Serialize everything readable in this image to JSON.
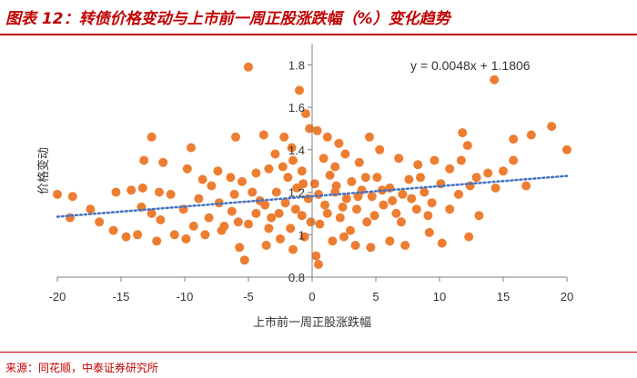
{
  "header": {
    "title": "图表 12：转债价格变动与上市前一周正股涨跌幅（%）变化趋势"
  },
  "footer": {
    "source": "来源：同花顺，中泰证券研究所"
  },
  "colors": {
    "accent": "#c00000",
    "points": "#ed7d31",
    "trend": "#4472c4",
    "axis": "#808080"
  },
  "chart_data": {
    "type": "scatter",
    "xlabel": "上市前一周正股涨跌幅",
    "ylabel": "价格变动",
    "xlim": [
      -20,
      20
    ],
    "ylim": [
      0.8,
      1.9
    ],
    "xticks": [
      -20,
      -15,
      -10,
      -5,
      0,
      5,
      10,
      15,
      20
    ],
    "yticks": [
      0.8,
      1,
      1.2,
      1.4,
      1.6,
      1.8
    ],
    "grid": false,
    "annotation": "y = 0.0048x + 1.1806",
    "trendline": {
      "slope": 0.0048,
      "intercept": 1.1806
    },
    "points": [
      [
        -5,
        1.79
      ],
      [
        14.3,
        1.73
      ],
      [
        -1,
        1.68
      ],
      [
        -0.5,
        1.57
      ],
      [
        -0.2,
        1.5
      ],
      [
        0.4,
        1.49
      ],
      [
        -12.6,
        1.46
      ],
      [
        -6,
        1.46
      ],
      [
        -3.8,
        1.47
      ],
      [
        -2.2,
        1.46
      ],
      [
        -1.6,
        1.41
      ],
      [
        1.2,
        1.46
      ],
      [
        4.5,
        1.46
      ],
      [
        11.8,
        1.48
      ],
      [
        15.8,
        1.45
      ],
      [
        17.2,
        1.47
      ],
      [
        18.8,
        1.51
      ],
      [
        20,
        1.4
      ],
      [
        -9.5,
        1.41
      ],
      [
        -13.2,
        1.35
      ],
      [
        -11.7,
        1.34
      ],
      [
        -20,
        1.19
      ],
      [
        -18.8,
        1.18
      ],
      [
        -17.4,
        1.12
      ],
      [
        -15.4,
        1.2
      ],
      [
        -14.2,
        1.21
      ],
      [
        -13.3,
        1.22
      ],
      [
        -12,
        1.2
      ],
      [
        -11.1,
        1.19
      ],
      [
        -9.8,
        1.31
      ],
      [
        -8.6,
        1.26
      ],
      [
        -7.4,
        1.3
      ],
      [
        -6.4,
        1.27
      ],
      [
        -5.5,
        1.25
      ],
      [
        -4.4,
        1.29
      ],
      [
        -3.4,
        1.31
      ],
      [
        -2.3,
        1.32
      ],
      [
        -1.5,
        1.35
      ],
      [
        -0.8,
        1.3
      ],
      [
        0.9,
        1.36
      ],
      [
        1.8,
        1.32
      ],
      [
        2.6,
        1.38
      ],
      [
        3.7,
        1.34
      ],
      [
        5.3,
        1.4
      ],
      [
        6.8,
        1.36
      ],
      [
        8.3,
        1.33
      ],
      [
        9.6,
        1.35
      ],
      [
        10.8,
        1.31
      ],
      [
        11.7,
        1.35
      ],
      [
        12.2,
        1.42
      ],
      [
        12.9,
        1.27
      ],
      [
        13.8,
        1.29
      ],
      [
        15,
        1.3
      ],
      [
        15.8,
        1.35
      ],
      [
        16.8,
        1.23
      ],
      [
        -19,
        1.08
      ],
      [
        -16.7,
        1.06
      ],
      [
        -15.6,
        1.02
      ],
      [
        -13.4,
        1.13
      ],
      [
        -12.6,
        1.1
      ],
      [
        -10.1,
        1.12
      ],
      [
        -9.3,
        1.04
      ],
      [
        -8.1,
        1.08
      ],
      [
        -7.3,
        1.15
      ],
      [
        -6.3,
        1.11
      ],
      [
        -5.8,
        1.06
      ],
      [
        -14.6,
        0.99
      ],
      [
        -13.7,
        1.0
      ],
      [
        -12.2,
        0.97
      ],
      [
        -10.8,
        1.0
      ],
      [
        -5.7,
        0.94
      ],
      [
        -5.3,
        0.88
      ],
      [
        -3.6,
        0.95
      ],
      [
        -2.5,
        0.98
      ],
      [
        -1.5,
        0.93
      ],
      [
        -0.6,
        0.99
      ],
      [
        0.3,
        0.9
      ],
      [
        0.5,
        0.86
      ],
      [
        1.6,
        0.97
      ],
      [
        2.5,
        0.99
      ],
      [
        3.4,
        0.95
      ],
      [
        4.6,
        0.94
      ],
      [
        6.1,
        0.97
      ],
      [
        7.3,
        0.95
      ],
      [
        9.2,
        1.01
      ],
      [
        10.2,
        0.96
      ],
      [
        12.3,
        0.99
      ],
      [
        -5,
        1.05
      ],
      [
        -4.4,
        1.1
      ],
      [
        -3.7,
        1.14
      ],
      [
        -3.2,
        1.08
      ],
      [
        -2.8,
        1.2
      ],
      [
        -2.1,
        1.15
      ],
      [
        -1.7,
        1.03
      ],
      [
        -1.2,
        1.22
      ],
      [
        -0.8,
        1.09
      ],
      [
        -0.3,
        1.17
      ],
      [
        0.2,
        1.24
      ],
      [
        0.6,
        1.05
      ],
      [
        1,
        1.14
      ],
      [
        1.4,
        1.28
      ],
      [
        1.8,
        1.2
      ],
      [
        2.2,
        1.08
      ],
      [
        2.7,
        1.17
      ],
      [
        3.1,
        1.25
      ],
      [
        3.5,
        1.12
      ],
      [
        3.9,
        1.21
      ],
      [
        4.3,
        1.06
      ],
      [
        4.7,
        1.18
      ],
      [
        5.1,
        1.27
      ],
      [
        5.6,
        1.14
      ],
      [
        6.1,
        1.22
      ],
      [
        6.6,
        1.1
      ],
      [
        7.1,
        1.19
      ],
      [
        7.6,
        1.26
      ],
      [
        8.2,
        1.12
      ],
      [
        8.8,
        1.2
      ],
      [
        9.4,
        1.15
      ],
      [
        10.1,
        1.24
      ],
      [
        10.8,
        1.12
      ],
      [
        11.5,
        1.19
      ],
      [
        12.4,
        1.23
      ],
      [
        -4.7,
        1.2
      ],
      [
        -4.1,
        1.16
      ],
      [
        -3.4,
        1.03
      ],
      [
        -2.6,
        1.1
      ],
      [
        -1.9,
        1.27
      ],
      [
        -1.3,
        1.12
      ],
      [
        -0.7,
        1.24
      ],
      [
        -0.1,
        1.06
      ],
      [
        0.5,
        1.19
      ],
      [
        1.2,
        1.1
      ],
      [
        1.9,
        1.23
      ],
      [
        2.4,
        1.13
      ],
      [
        3,
        1.02
      ],
      [
        3.6,
        1.18
      ],
      [
        4.2,
        1.27
      ],
      [
        4.9,
        1.09
      ],
      [
        5.5,
        1.21
      ],
      [
        6.3,
        1.16
      ],
      [
        7,
        1.06
      ],
      [
        7.8,
        1.17
      ],
      [
        8.5,
        1.27
      ],
      [
        9.1,
        1.09
      ],
      [
        -8.9,
        1.17
      ],
      [
        -7.9,
        1.23
      ],
      [
        -6.9,
        1.04
      ],
      [
        -6.1,
        1.19
      ],
      [
        -11.9,
        1.07
      ],
      [
        -9.9,
        0.98
      ],
      [
        -8.4,
        1.0
      ],
      [
        -7.1,
        1.02
      ],
      [
        13.1,
        1.09
      ],
      [
        14.4,
        1.22
      ],
      [
        -2.9,
        1.38
      ],
      [
        2.1,
        1.43
      ]
    ]
  }
}
